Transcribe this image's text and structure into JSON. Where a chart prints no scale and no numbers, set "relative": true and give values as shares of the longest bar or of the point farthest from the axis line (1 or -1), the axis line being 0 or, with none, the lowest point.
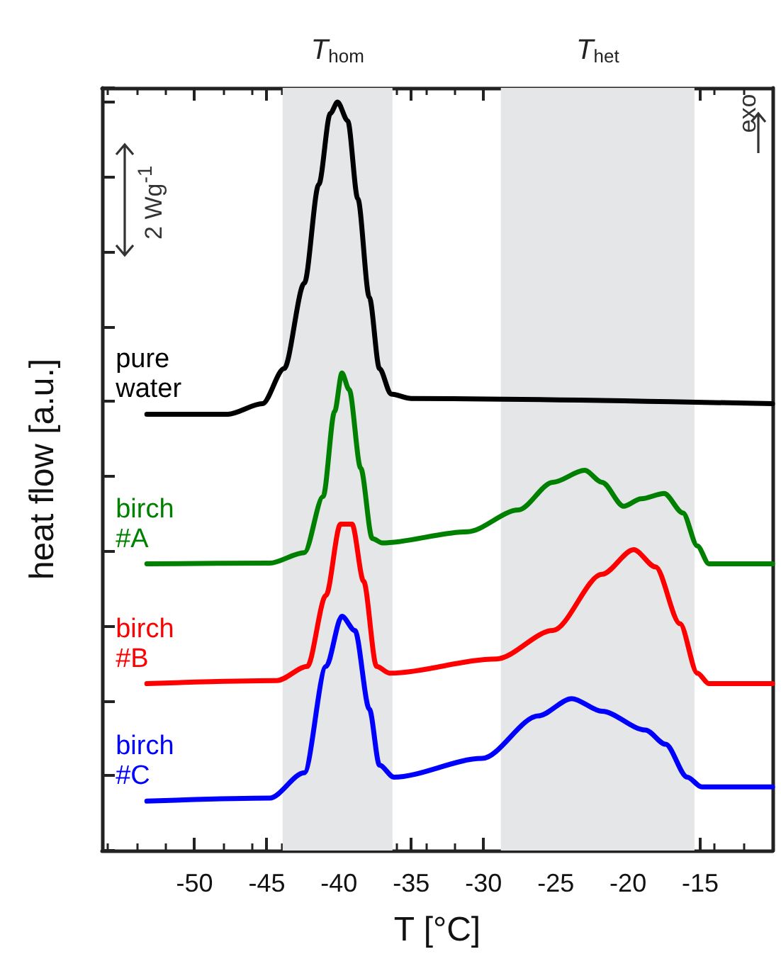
{
  "chart_data": {
    "type": "line",
    "relative": true,
    "xlabel": "T [°C]",
    "ylabel": "heat flow [a.u.]",
    "xlim": [
      -56.4,
      -10.0
    ],
    "xticks": [
      -50,
      -45,
      -40,
      -35,
      -30,
      -25,
      -20,
      -15
    ],
    "legend": false,
    "grid": false,
    "marker": "none",
    "line_style": "solid",
    "bands": [
      {
        "axis": "x",
        "from": -43.9,
        "to": -36.3,
        "label": "T$_{hom}$",
        "color": "#e5e6e8"
      },
      {
        "axis": "x",
        "from": -28.8,
        "to": -15.4,
        "label": "T$_{het}$",
        "color": "#e5e6e8"
      }
    ],
    "annotations": [
      "2 Wg$^{-1}$",
      "exo"
    ],
    "series": [
      {
        "name": "pure water",
        "color": "#000000",
        "x": [
          -53.3,
          -47.7,
          -45.3,
          -43.8,
          -42.4,
          -41.4,
          -40.6,
          -40.1,
          -39.4,
          -38.7,
          -37.9,
          -37.2,
          -36.4,
          -35.0,
          -10.0
        ],
        "values": [
          0.583,
          0.583,
          0.597,
          0.644,
          0.758,
          0.89,
          0.985,
          1,
          0.975,
          0.871,
          0.739,
          0.644,
          0.61,
          0.604,
          0.597
        ]
      },
      {
        "name": "birch #A",
        "color": "#008000",
        "x": [
          -53.3,
          -44.8,
          -42.4,
          -41.1,
          -40.3,
          -39.8,
          -39.3,
          -38.5,
          -37.7,
          -37.0,
          -31.1,
          -27.6,
          -25.2,
          -23.0,
          -21.8,
          -20.3,
          -19.1,
          -17.5,
          -16.2,
          -15.2,
          -14.4,
          -10.0
        ],
        "values": [
          0.383,
          0.384,
          0.398,
          0.473,
          0.587,
          0.638,
          0.616,
          0.511,
          0.417,
          0.411,
          0.426,
          0.455,
          0.492,
          0.508,
          0.492,
          0.46,
          0.47,
          0.477,
          0.451,
          0.407,
          0.383,
          0.383
        ]
      },
      {
        "name": "birch #B",
        "color": "#ff0000",
        "x": [
          -53.3,
          -44.3,
          -42.2,
          -40.9,
          -39.9,
          -39.1,
          -38.3,
          -37.4,
          -36.5,
          -29.1,
          -25.2,
          -21.8,
          -19.6,
          -18.1,
          -16.4,
          -15.2,
          -14.4,
          -10.0
        ],
        "values": [
          0.223,
          0.227,
          0.246,
          0.341,
          0.436,
          0.436,
          0.36,
          0.246,
          0.237,
          0.256,
          0.294,
          0.369,
          0.402,
          0.379,
          0.303,
          0.237,
          0.223,
          0.223
        ]
      },
      {
        "name": "birch #C",
        "color": "#0000ff",
        "x": [
          -53.3,
          -44.8,
          -42.4,
          -40.9,
          -39.8,
          -38.9,
          -37.9,
          -37.2,
          -36.2,
          -30.1,
          -26.2,
          -23.9,
          -21.8,
          -18.8,
          -17.4,
          -15.9,
          -14.9,
          -10.0
        ],
        "values": [
          0.066,
          0.07,
          0.104,
          0.246,
          0.313,
          0.294,
          0.189,
          0.114,
          0.098,
          0.123,
          0.18,
          0.203,
          0.186,
          0.161,
          0.142,
          0.098,
          0.085,
          0.085
        ]
      }
    ]
  }
}
